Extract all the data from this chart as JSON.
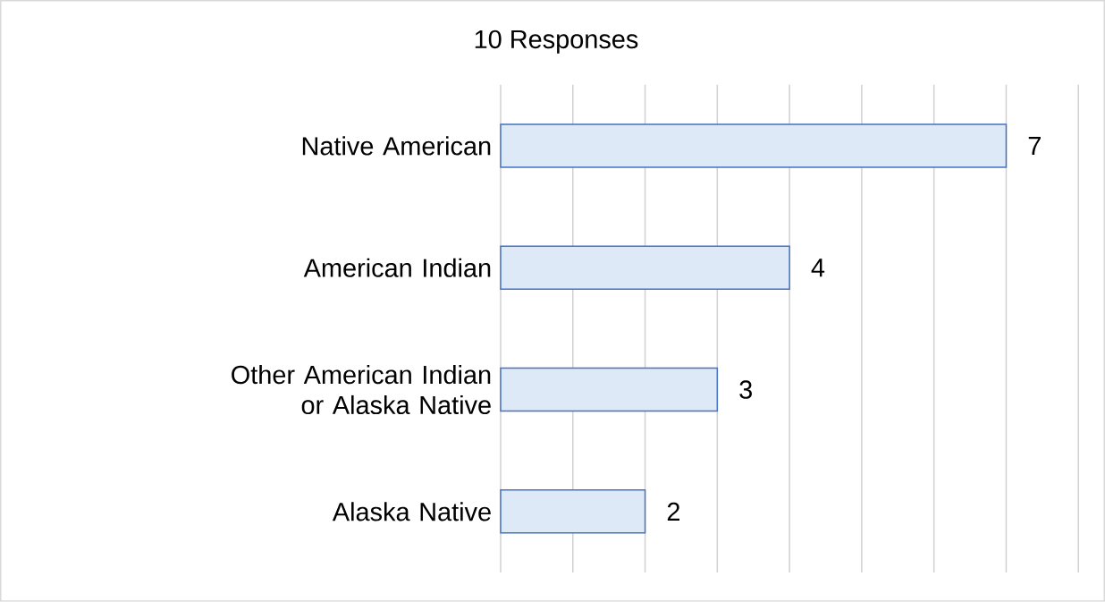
{
  "chart_data": {
    "type": "bar",
    "orientation": "horizontal",
    "title": "10 Responses",
    "categories": [
      "Native American",
      "American Indian",
      "Other American Indian or Alaska Native",
      "Alaska Native"
    ],
    "values": [
      7,
      4,
      3,
      2
    ],
    "color": "#dde9f6",
    "xlim": [
      0,
      8
    ],
    "xticks": [
      {
        "value": 0,
        "label": null
      },
      {
        "value": 1,
        "label": null
      },
      {
        "value": 2,
        "label": null
      },
      {
        "value": 3,
        "label": null
      },
      {
        "value": 4,
        "label": null
      },
      {
        "value": 5,
        "label": null
      },
      {
        "value": 6,
        "label": null
      },
      {
        "value": 7,
        "label": null
      },
      {
        "value": 8,
        "label": null
      }
    ],
    "grid": "x",
    "tick_labels": "y",
    "data_labels": true
  }
}
